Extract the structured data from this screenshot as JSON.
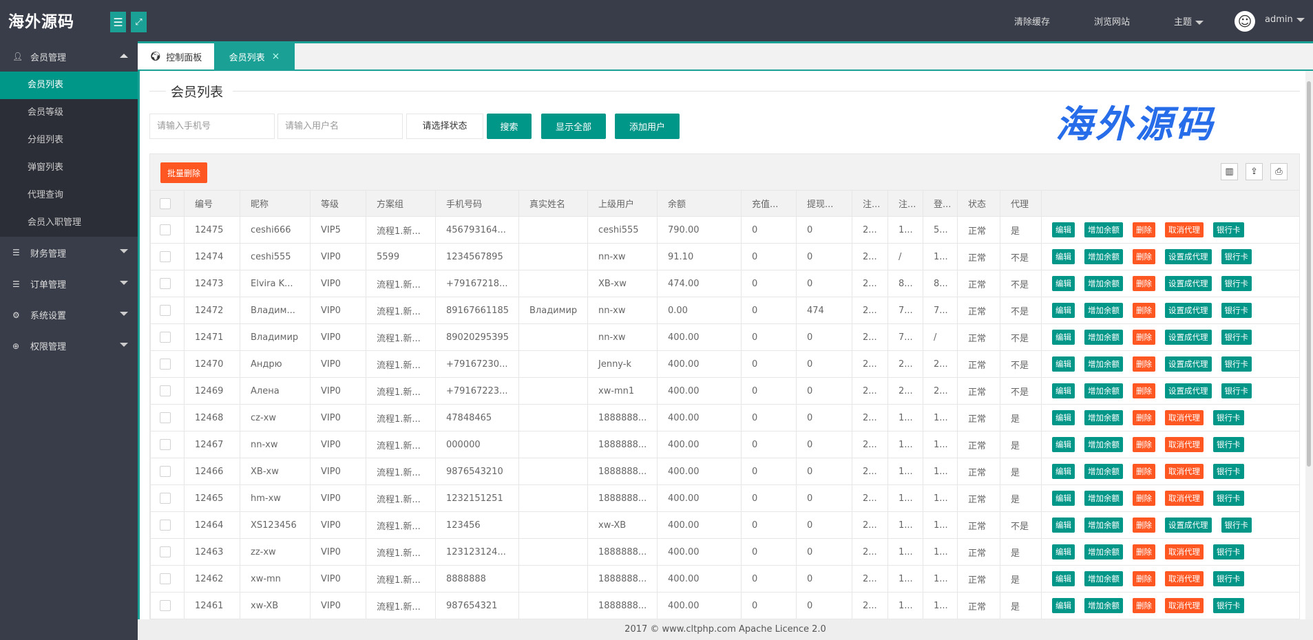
{
  "header": {
    "logo": "海外源码",
    "menu_icon": "menu-icon",
    "fullscreen_icon": "fullscreen-icon",
    "clear_cache": "清除缓存",
    "browse_site": "浏览网站",
    "theme": "主题",
    "user": "admin"
  },
  "sidebar": {
    "groups": [
      {
        "label": "会员管理",
        "icon": "user-icon",
        "expanded": true,
        "items": [
          "会员列表",
          "会员等级",
          "分组列表",
          "弹窗列表",
          "代理查询",
          "会员入职管理"
        ],
        "active": 0
      },
      {
        "label": "财务管理",
        "icon": "database-icon"
      },
      {
        "label": "订单管理",
        "icon": "database-icon"
      },
      {
        "label": "系统设置",
        "icon": "settings-icon"
      },
      {
        "label": "权限管理",
        "icon": "globe-icon"
      }
    ]
  },
  "tabs": [
    {
      "label": "控制面板",
      "icon": "globe-icon"
    },
    {
      "label": "会员列表",
      "closable": true,
      "active": true,
      "close": "×"
    }
  ],
  "page": {
    "title": "会员列表",
    "phone_placeholder": "请输入手机号",
    "username_placeholder": "请输入用户名",
    "status_select": "请选择状态",
    "search": "搜索",
    "show_all": "显示全部",
    "add_user": "添加用户",
    "bulk_delete": "批量删除"
  },
  "table": {
    "columns": [
      "编号",
      "昵称",
      "等级",
      "方案组",
      "手机号码",
      "真实姓名",
      "上级用户",
      "余额",
      "充值...",
      "提现...",
      "注...",
      "注...",
      "登...",
      "状态",
      "代理",
      ""
    ],
    "action_labels": {
      "edit": "编辑",
      "add_balance": "增加余额",
      "delete": "删除",
      "bank_card": "银行卡"
    },
    "rows": [
      {
        "cells": [
          "12475",
          "ceshi666",
          "VIP5",
          "流程1.新...",
          "456793164...",
          "",
          "ceshi555",
          "790.00",
          "0",
          "0",
          "2...",
          "1...",
          "5...",
          "正常",
          "是"
        ],
        "toggle": "取消代理"
      },
      {
        "cells": [
          "12474",
          "ceshi555",
          "VIP0",
          "5599",
          "1234567895",
          "",
          "nn-xw",
          "91.10",
          "0",
          "0",
          "2...",
          "/",
          "1...",
          "正常",
          "不是"
        ],
        "toggle": "设置成代理"
      },
      {
        "cells": [
          "12473",
          "Elvira K...",
          "VIP0",
          "流程1.新...",
          "+79167218...",
          "",
          "XB-xw",
          "474.00",
          "0",
          "0",
          "2...",
          "8...",
          "8...",
          "正常",
          "不是"
        ],
        "toggle": "设置成代理"
      },
      {
        "cells": [
          "12472",
          "Владим...",
          "VIP0",
          "流程1.新...",
          "89167661185",
          "Владимир",
          "nn-xw",
          "0.00",
          "0",
          "474",
          "2...",
          "7...",
          "7...",
          "正常",
          "不是"
        ],
        "toggle": "设置成代理"
      },
      {
        "cells": [
          "12471",
          "Владимир",
          "VIP0",
          "流程1.新...",
          "89020295395",
          "",
          "nn-xw",
          "400.00",
          "0",
          "0",
          "2...",
          "7...",
          "/",
          "正常",
          "不是"
        ],
        "toggle": "设置成代理"
      },
      {
        "cells": [
          "12470",
          "Андрю",
          "VIP0",
          "流程1.新...",
          "+79167230...",
          "",
          "Jenny-k",
          "400.00",
          "0",
          "0",
          "2...",
          "2...",
          "2...",
          "正常",
          "不是"
        ],
        "toggle": "设置成代理"
      },
      {
        "cells": [
          "12469",
          "Алена",
          "VIP0",
          "流程1.新...",
          "+79167223...",
          "",
          "xw-mn1",
          "400.00",
          "0",
          "0",
          "2...",
          "2...",
          "2...",
          "正常",
          "不是"
        ],
        "toggle": "设置成代理"
      },
      {
        "cells": [
          "12468",
          "cz-xw",
          "VIP0",
          "流程1.新...",
          "47848465",
          "",
          "1888888...",
          "400.00",
          "0",
          "0",
          "2...",
          "1...",
          "1...",
          "正常",
          "是"
        ],
        "toggle": "取消代理"
      },
      {
        "cells": [
          "12467",
          "nn-xw",
          "VIP0",
          "流程1.新...",
          "000000",
          "",
          "1888888...",
          "400.00",
          "0",
          "0",
          "2...",
          "1...",
          "1...",
          "正常",
          "是"
        ],
        "toggle": "取消代理"
      },
      {
        "cells": [
          "12466",
          "XB-xw",
          "VIP0",
          "流程1.新...",
          "9876543210",
          "",
          "1888888...",
          "400.00",
          "0",
          "0",
          "2...",
          "1...",
          "1...",
          "正常",
          "是"
        ],
        "toggle": "取消代理"
      },
      {
        "cells": [
          "12465",
          "hm-xw",
          "VIP0",
          "流程1.新...",
          "1232151251",
          "",
          "1888888...",
          "400.00",
          "0",
          "0",
          "2...",
          "1...",
          "1...",
          "正常",
          "是"
        ],
        "toggle": "取消代理"
      },
      {
        "cells": [
          "12464",
          "XS123456",
          "VIP0",
          "流程1.新...",
          "123456",
          "",
          "xw-XB",
          "400.00",
          "0",
          "0",
          "2...",
          "1...",
          "1...",
          "正常",
          "不是"
        ],
        "toggle": "设置成代理"
      },
      {
        "cells": [
          "12463",
          "zz-xw",
          "VIP0",
          "流程1.新...",
          "123123124...",
          "",
          "1888888...",
          "400.00",
          "0",
          "0",
          "2...",
          "1...",
          "1...",
          "正常",
          "是"
        ],
        "toggle": "取消代理"
      },
      {
        "cells": [
          "12462",
          "xw-mn",
          "VIP0",
          "流程1.新...",
          "8888888",
          "",
          "1888888...",
          "400.00",
          "0",
          "0",
          "2...",
          "1...",
          "1...",
          "正常",
          "是"
        ],
        "toggle": "取消代理"
      },
      {
        "cells": [
          "12461",
          "xw-XB",
          "VIP0",
          "流程1.新...",
          "987654321",
          "",
          "1888888...",
          "400.00",
          "0",
          "0",
          "2...",
          "1...",
          "1...",
          "正常",
          "是"
        ],
        "toggle": "取消代理"
      }
    ]
  },
  "footer": "2017 ©  www.cltphp.com  Apache Licence 2.0",
  "watermark": "海外源码",
  "colors": {
    "primary": "#009688",
    "danger": "#ff5722",
    "header": "#393d49"
  }
}
